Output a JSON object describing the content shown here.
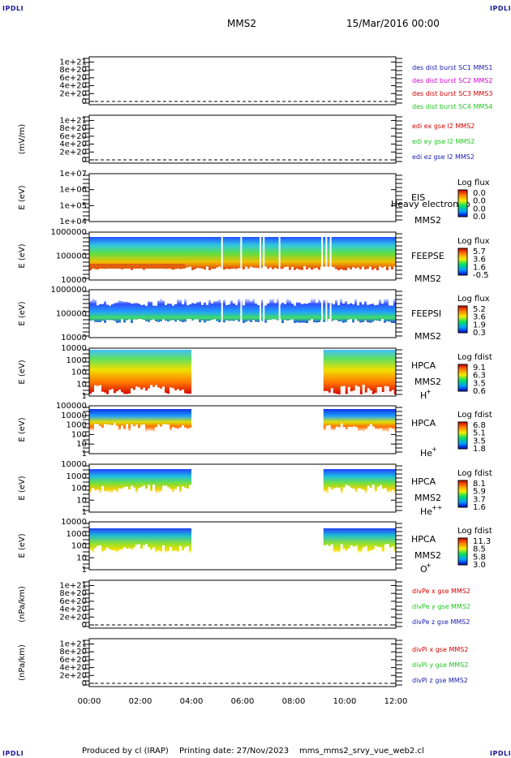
{
  "corner_label": "IPDLI",
  "header": {
    "spacecraft": "MMS2",
    "datetime": "15/Mar/2016 00:00"
  },
  "footer": {
    "producer": "Produced by cl (IRAP)",
    "printing_date": "Printing date: 27/Nov/2023",
    "script": "mms_mms2_srvy_vue_web2.cl"
  },
  "colors": {
    "red": "#d40000",
    "magenta": "#d400d4",
    "green": "#22c422",
    "blue": "#1a1ab0"
  },
  "chart_data": [
    {
      "type": "line",
      "x_range": [
        "00:00",
        "12:00"
      ],
      "yticks": [
        "1e+21",
        "8e+20",
        "6e+20",
        "4e+20",
        "2e+20",
        "0"
      ],
      "ylabel": "",
      "ylim": [
        0,
        1.05e+21
      ],
      "legend": [
        {
          "text": "des dist burst SC1 MMS1",
          "color": "#1a1ab0"
        },
        {
          "text": "des dist burst SC2 MMS2",
          "color": "#d400d4"
        },
        {
          "text": "des dist burst SC3 MMS3",
          "color": "#d40000"
        },
        {
          "text": "des dist burst SC4 MMS4",
          "color": "#22c422"
        }
      ]
    },
    {
      "type": "line",
      "x_range": [
        "00:00",
        "12:00"
      ],
      "yticks": [
        "1e+21",
        "8e+20",
        "6e+20",
        "4e+20",
        "2e+20",
        "0"
      ],
      "ylabel": "(mV/m)",
      "ylim": [
        0,
        1.05e+21
      ],
      "legend": [
        {
          "text": "edi ex gse l2 MMS2",
          "color": "#d40000"
        },
        {
          "text": "edi ey gse l2 MMS2",
          "color": "#22c422"
        },
        {
          "text": "edi ez gse l2 MMS2",
          "color": "#1a1ab0"
        }
      ]
    },
    {
      "type": "heatmap",
      "yscale": "log",
      "yticks": [
        "1e+07",
        "1e+06",
        "1e+05",
        "1e+04"
      ],
      "ylabel": "E (eV)",
      "ylim": [
        10000,
        10000000
      ],
      "instrument": [
        "EIS",
        "MMS2"
      ],
      "overlay_text": "Heavy electron to",
      "colorbar": {
        "title": "Log flux",
        "ticks": [
          "0.0",
          "0.0",
          "0.0",
          "0.0"
        ]
      },
      "intervals": []
    },
    {
      "type": "heatmap",
      "yscale": "log",
      "yticks": [
        "1000000",
        "100000",
        "10000"
      ],
      "ylabel": "E (eV)",
      "ylim": [
        10000,
        1000000
      ],
      "instrument": [
        "FEEPSE",
        "MMS2"
      ],
      "colorbar": {
        "title": "Log flux",
        "ticks": [
          "5.7",
          "3.6",
          "1.6",
          "-0.5"
        ]
      },
      "intervals": [
        [
          "00:00",
          "12:00"
        ]
      ]
    },
    {
      "type": "heatmap",
      "yscale": "log",
      "yticks": [
        "1000000",
        "100000",
        "10000"
      ],
      "ylabel": "E (eV)",
      "ylim": [
        10000,
        1000000
      ],
      "instrument": [
        "FEEPSI",
        "MMS2"
      ],
      "colorbar": {
        "title": "Log flux",
        "ticks": [
          "5.2",
          "3.6",
          "1.9",
          "0.3"
        ]
      },
      "intervals": [
        [
          "00:00",
          "12:00"
        ]
      ]
    },
    {
      "type": "heatmap",
      "yscale": "log",
      "yticks": [
        "10000",
        "1000",
        "100",
        "10",
        "1"
      ],
      "ylabel": "E (eV)",
      "ylim": [
        1,
        30000
      ],
      "instrument": [
        "HPCA",
        "MMS2"
      ],
      "species": "H",
      "species_charge": "+",
      "colorbar": {
        "title": "Log fdist",
        "ticks": [
          "9.1",
          "6.3",
          "3.5",
          "0.6"
        ]
      },
      "intervals": [
        [
          "00:00",
          "04:00"
        ],
        [
          "09:10",
          "12:00"
        ]
      ]
    },
    {
      "type": "heatmap",
      "yscale": "log",
      "yticks": [
        "100000",
        "10000",
        "1000",
        "100",
        "10",
        "1"
      ],
      "ylabel": "E (eV)",
      "ylim": [
        1,
        100000
      ],
      "instrument": [
        "HPCA"
      ],
      "species": "He",
      "species_charge": "+",
      "colorbar": {
        "title": "Log fdist",
        "ticks": [
          "6.8",
          "5.1",
          "3.5",
          "1.8"
        ]
      },
      "intervals": [
        [
          "00:00",
          "04:00"
        ],
        [
          "09:10",
          "12:00"
        ]
      ]
    },
    {
      "type": "heatmap",
      "yscale": "log",
      "yticks": [
        "10000",
        "1000",
        "100",
        "10",
        "1"
      ],
      "ylabel": "E (eV)",
      "ylim": [
        1,
        30000
      ],
      "instrument": [
        "HPCA",
        "MMS2"
      ],
      "species": "He",
      "species_charge": "++",
      "colorbar": {
        "title": "Log fdist",
        "ticks": [
          "8.1",
          "5.9",
          "3.7",
          "1.6"
        ]
      },
      "intervals": [
        [
          "00:00",
          "04:00"
        ],
        [
          "09:10",
          "12:00"
        ]
      ]
    },
    {
      "type": "heatmap",
      "yscale": "log",
      "yticks": [
        "10000",
        "1000",
        "100",
        "10",
        "1"
      ],
      "ylabel": "E (eV)",
      "ylim": [
        1,
        30000
      ],
      "instrument": [
        "HPCA",
        "MMS2"
      ],
      "species": "O",
      "species_charge": "+",
      "colorbar": {
        "title": "Log fdist",
        "ticks": [
          "11.3",
          "8.5",
          "5.8",
          "3.0"
        ]
      },
      "intervals": [
        [
          "00:00",
          "04:00"
        ],
        [
          "09:10",
          "12:00"
        ]
      ]
    },
    {
      "type": "line",
      "x_range": [
        "00:00",
        "12:00"
      ],
      "yticks": [
        "1e+21",
        "8e+20",
        "6e+20",
        "4e+20",
        "2e+20",
        "0"
      ],
      "ylabel": "(nPa/km)",
      "ylim": [
        0,
        1.05e+21
      ],
      "legend": [
        {
          "text": "divPe x gse MMS2",
          "color": "#d40000"
        },
        {
          "text": "divPe y gse MMS2",
          "color": "#22c422"
        },
        {
          "text": "divPe z gse MMS2",
          "color": "#1a1ab0"
        }
      ]
    },
    {
      "type": "line",
      "x_range": [
        "00:00",
        "12:00"
      ],
      "yticks": [
        "1e+21",
        "8e+20",
        "6e+20",
        "4e+20",
        "2e+20",
        "0"
      ],
      "ylabel": "(nPa/km)",
      "ylim": [
        0,
        1.05e+21
      ],
      "legend": [
        {
          "text": "divPi x gse MMS2",
          "color": "#d40000"
        },
        {
          "text": "divPi y gse MMS2",
          "color": "#22c422"
        },
        {
          "text": "divPi z gse MMS2",
          "color": "#1a1ab0"
        }
      ]
    }
  ],
  "xaxis": {
    "ticks": [
      "00:00",
      "02:00",
      "04:00",
      "06:00",
      "08:00",
      "10:00",
      "12:00"
    ]
  }
}
